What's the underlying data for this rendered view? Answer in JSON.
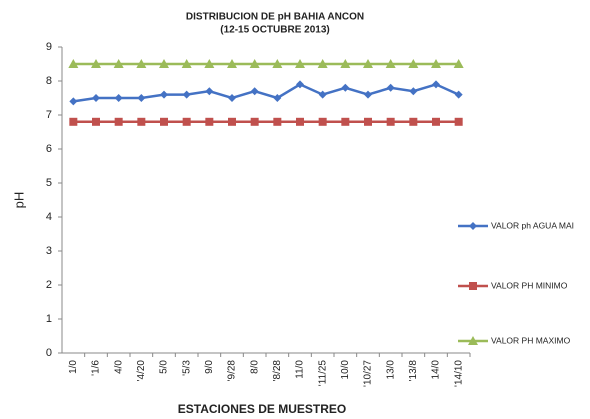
{
  "chart_data": {
    "type": "line",
    "title": "DISTRIBUCION DE pH BAHIA ANCON",
    "subtitle": "(12-15 OCTUBRE 2013)",
    "x_label": "ESTACIONES DE MUESTREO",
    "y_label": "pH",
    "categories": [
      "1/0",
      "'1/6",
      "4/0",
      "'4/20",
      "5/0",
      "'5/3",
      "9/0",
      "'9/28",
      "8/0",
      "'8/28",
      "11/0",
      "'11/25",
      "10/0",
      "'10/27",
      "13/0",
      "'13/8",
      "14/0",
      "'14/10"
    ],
    "series": [
      {
        "name": "VALOR ph AGUA MAI",
        "color": "#4472c4",
        "marker": "diamond",
        "values": [
          7.4,
          7.5,
          7.5,
          7.5,
          7.6,
          7.6,
          7.7,
          7.5,
          7.7,
          7.5,
          7.9,
          7.6,
          7.8,
          7.6,
          7.8,
          7.7,
          7.9,
          7.6
        ]
      },
      {
        "name": "VALOR PH MINIMO",
        "color": "#c0504d",
        "marker": "square",
        "values": [
          6.8,
          6.8,
          6.8,
          6.8,
          6.8,
          6.8,
          6.8,
          6.8,
          6.8,
          6.8,
          6.8,
          6.8,
          6.8,
          6.8,
          6.8,
          6.8,
          6.8,
          6.8
        ]
      },
      {
        "name": "VALOR PH MAXIMO",
        "color": "#9bbb59",
        "marker": "triangle",
        "values": [
          8.5,
          8.5,
          8.5,
          8.5,
          8.5,
          8.5,
          8.5,
          8.5,
          8.5,
          8.5,
          8.5,
          8.5,
          8.5,
          8.5,
          8.5,
          8.5,
          8.5,
          8.5
        ]
      }
    ],
    "ylim": [
      0,
      9
    ],
    "yticks": [
      0,
      1,
      2,
      3,
      4,
      5,
      6,
      7,
      8,
      9
    ],
    "grid": false,
    "legend": "right"
  }
}
